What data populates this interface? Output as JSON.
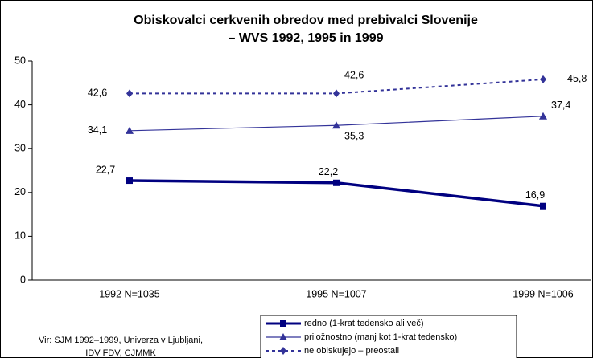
{
  "chart_data": {
    "type": "line",
    "title": [
      "Obiskovalci cerkvenih obredov med prebivalci Slovenije",
      "– WVS 1992, 1995 in 1999"
    ],
    "categories": [
      "1992 N=1035",
      "1995 N=1007",
      "1999 N=1006"
    ],
    "series": [
      {
        "name": "redno (1-krat tedensko ali več)",
        "color": "#000080",
        "marker": "square",
        "dash": false,
        "width": 3.5,
        "values": [
          22.7,
          22.2,
          16.9
        ],
        "value_labels": [
          "22,7",
          "22,2",
          "16,9"
        ]
      },
      {
        "name": "priložnostno (manj kot 1-krat tedensko)",
        "color": "#333399",
        "marker": "triangle",
        "dash": false,
        "width": 1.2,
        "values": [
          34.1,
          35.3,
          37.4
        ],
        "value_labels": [
          "34,1",
          "35,3",
          "37,4"
        ]
      },
      {
        "name": "ne obiskujejo – preostali",
        "color": "#333399",
        "marker": "diamond",
        "dash": true,
        "width": 2,
        "values": [
          42.6,
          42.6,
          45.8
        ],
        "value_labels": [
          "42,6",
          "42,6",
          "45,8"
        ]
      }
    ],
    "ylim": [
      0,
      50
    ],
    "yticks": [
      0,
      10,
      20,
      30,
      40,
      50
    ],
    "grid": false,
    "legend": "bottom",
    "source": [
      "Vir: SJM 1992–1999, Univerza v Ljubljani,",
      "IDV FDV, CJMMK"
    ]
  }
}
